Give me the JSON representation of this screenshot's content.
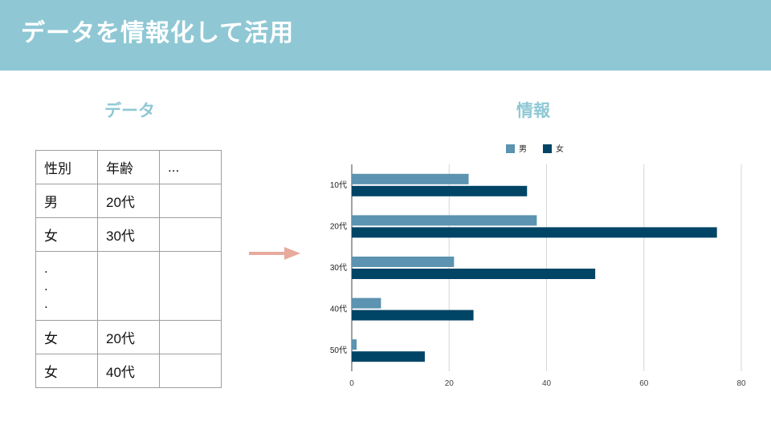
{
  "header": {
    "title": "データを情報化して活用"
  },
  "sections": {
    "data_label": "データ",
    "info_label": "情報"
  },
  "table": {
    "rows": [
      [
        "性別",
        "年齢",
        "..."
      ],
      [
        "男",
        "20代",
        ""
      ],
      [
        "女",
        "30代",
        ""
      ],
      [
        ".",
        "",
        ""
      ],
      [
        "女",
        "20代",
        ""
      ],
      [
        "女",
        "40代",
        ""
      ]
    ],
    "ellipsis_dots": [
      ".",
      ".",
      "."
    ]
  },
  "chart_data": {
    "type": "bar",
    "orientation": "horizontal",
    "categories": [
      "10代",
      "20代",
      "30代",
      "40代",
      "50代"
    ],
    "series": [
      {
        "name": "男",
        "color": "#5b93b0",
        "values": [
          24,
          38,
          21,
          6,
          1
        ]
      },
      {
        "name": "女",
        "color": "#004466",
        "values": [
          36,
          75,
          50,
          25,
          15
        ]
      }
    ],
    "xlim": [
      0,
      80
    ],
    "xticks": [
      "0",
      "20",
      "40",
      "60",
      "80"
    ],
    "grid": true,
    "legend": "top"
  }
}
